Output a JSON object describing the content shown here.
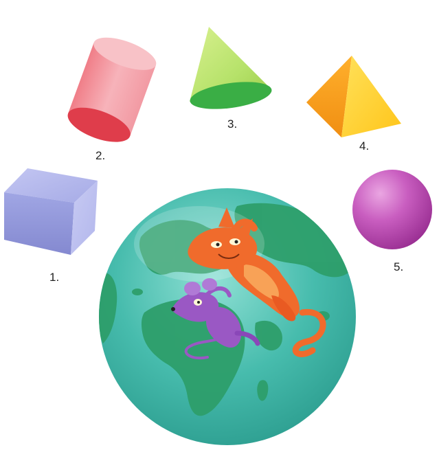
{
  "shapes": [
    {
      "label": "1.",
      "name": "cube",
      "color": "#8f95d8"
    },
    {
      "label": "2.",
      "name": "cylinder",
      "color": "#ee6e78"
    },
    {
      "label": "3.",
      "name": "cone",
      "color": "#8fd24a"
    },
    {
      "label": "4.",
      "name": "pyramid",
      "color": "#f7a318"
    },
    {
      "label": "5.",
      "name": "sphere",
      "color": "#bd43b6"
    }
  ],
  "globe": {
    "ocean_color": "#3fb5a5",
    "land_color": "#2f9e6f"
  },
  "characters": [
    {
      "name": "cat",
      "color": "#f06b2c"
    },
    {
      "name": "mouse",
      "color": "#9a58c4"
    }
  ]
}
